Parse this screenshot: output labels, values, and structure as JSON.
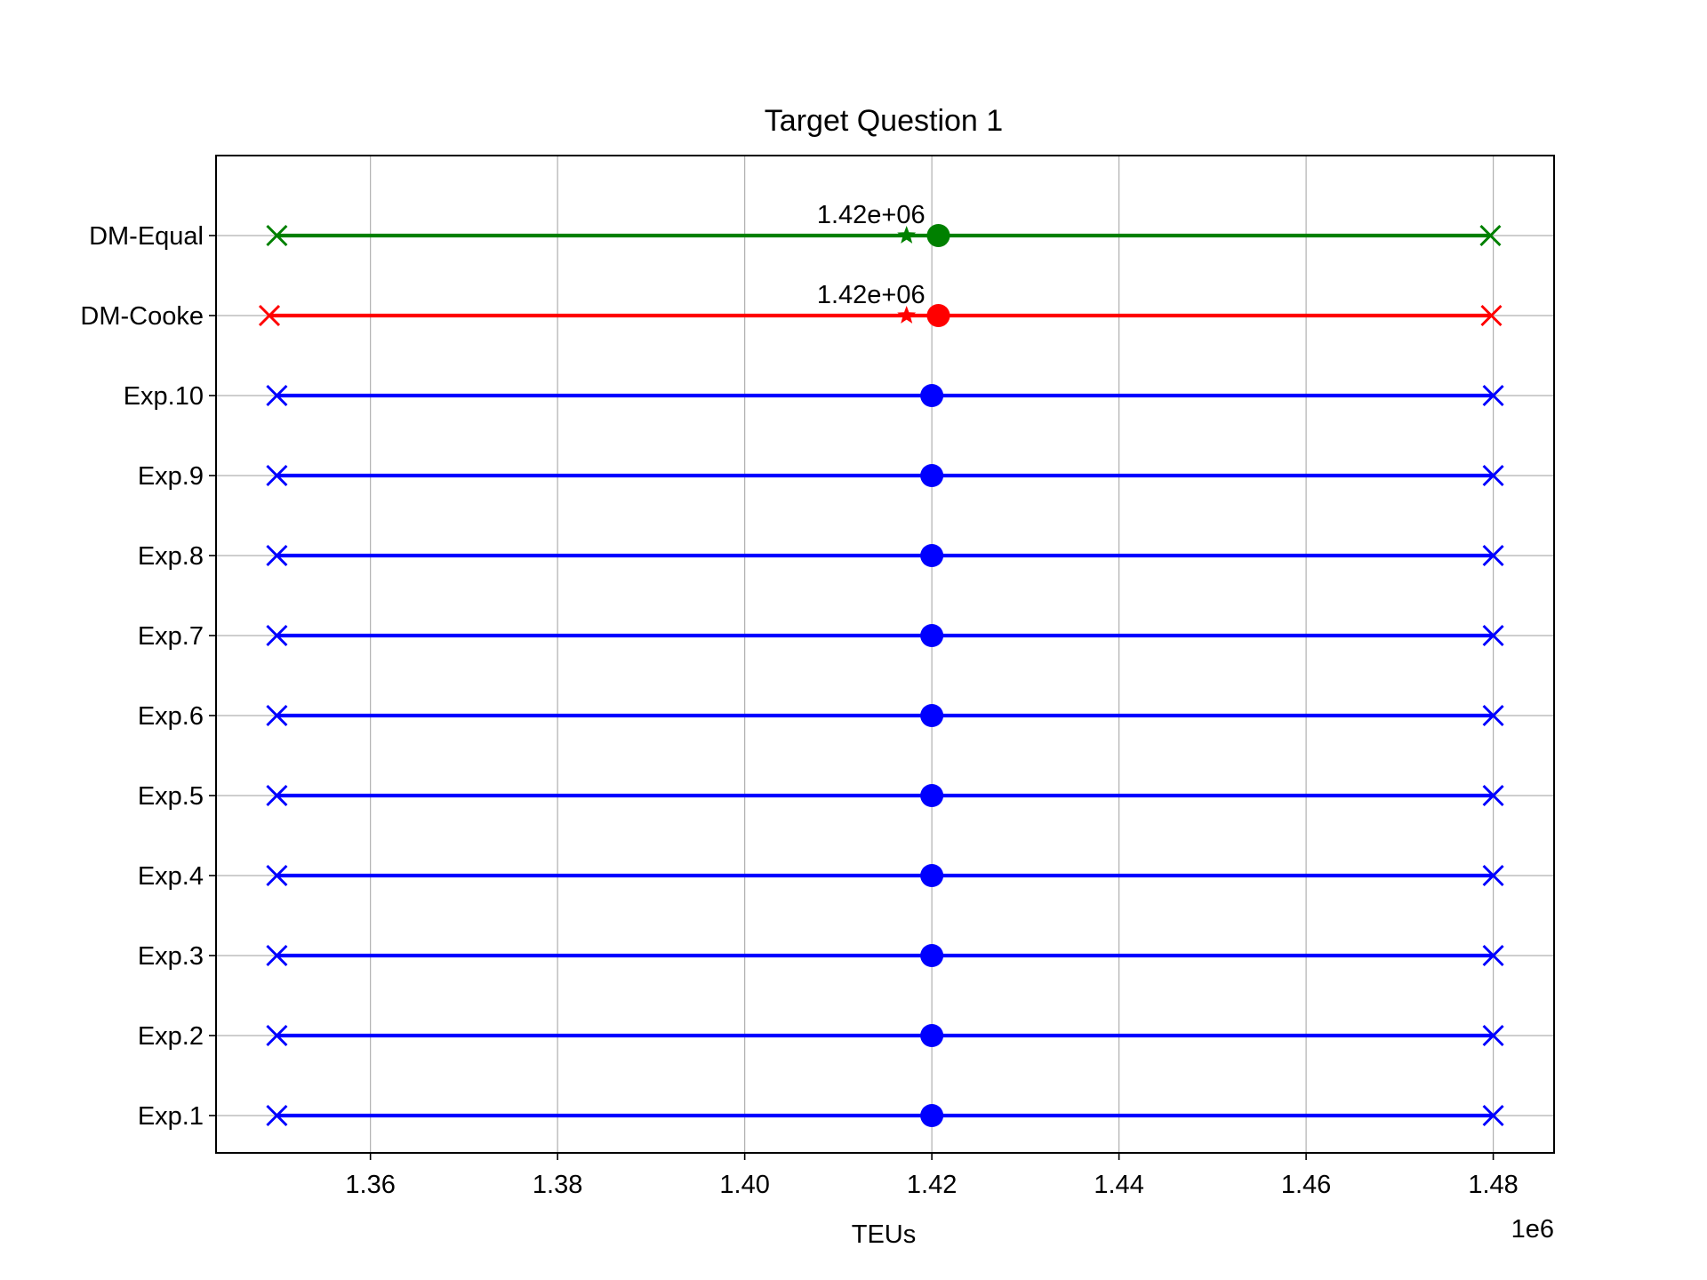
{
  "chart_data": {
    "type": "dumbbell",
    "title": "Target Question 1",
    "xlabel": "TEUs",
    "ylabel": "",
    "x_offset_label": "1e6",
    "x_scale": 1000000,
    "xlim": [
      1343500,
      1486500
    ],
    "xticks": [
      1360000,
      1380000,
      1400000,
      1420000,
      1440000,
      1460000,
      1480000
    ],
    "xtick_labels": [
      "1.36",
      "1.38",
      "1.40",
      "1.42",
      "1.44",
      "1.46",
      "1.48"
    ],
    "grid": true,
    "categories": [
      "Exp.1",
      "Exp.2",
      "Exp.3",
      "Exp.4",
      "Exp.5",
      "Exp.6",
      "Exp.7",
      "Exp.8",
      "Exp.9",
      "Exp.10",
      "DM-Cooke",
      "DM-Equal"
    ],
    "rows": [
      {
        "label": "Exp.1",
        "low": 1350000,
        "median": 1420000,
        "high": 1480000,
        "color": "#0000ff"
      },
      {
        "label": "Exp.2",
        "low": 1350000,
        "median": 1420000,
        "high": 1480000,
        "color": "#0000ff"
      },
      {
        "label": "Exp.3",
        "low": 1350000,
        "median": 1420000,
        "high": 1480000,
        "color": "#0000ff"
      },
      {
        "label": "Exp.4",
        "low": 1350000,
        "median": 1420000,
        "high": 1480000,
        "color": "#0000ff"
      },
      {
        "label": "Exp.5",
        "low": 1350000,
        "median": 1420000,
        "high": 1480000,
        "color": "#0000ff"
      },
      {
        "label": "Exp.6",
        "low": 1350000,
        "median": 1420000,
        "high": 1480000,
        "color": "#0000ff"
      },
      {
        "label": "Exp.7",
        "low": 1350000,
        "median": 1420000,
        "high": 1480000,
        "color": "#0000ff"
      },
      {
        "label": "Exp.8",
        "low": 1350000,
        "median": 1420000,
        "high": 1480000,
        "color": "#0000ff"
      },
      {
        "label": "Exp.9",
        "low": 1350000,
        "median": 1420000,
        "high": 1480000,
        "color": "#0000ff"
      },
      {
        "label": "Exp.10",
        "low": 1350000,
        "median": 1420000,
        "high": 1480000,
        "color": "#0000ff"
      },
      {
        "label": "DM-Cooke",
        "low": 1349200,
        "median": 1420700,
        "high": 1479800,
        "mean": 1417300,
        "mean_label": "1.42e+06",
        "color": "#ff0000"
      },
      {
        "label": "DM-Equal",
        "low": 1350000,
        "median": 1420700,
        "high": 1479700,
        "mean": 1417300,
        "mean_label": "1.42e+06",
        "color": "#008000"
      }
    ]
  }
}
